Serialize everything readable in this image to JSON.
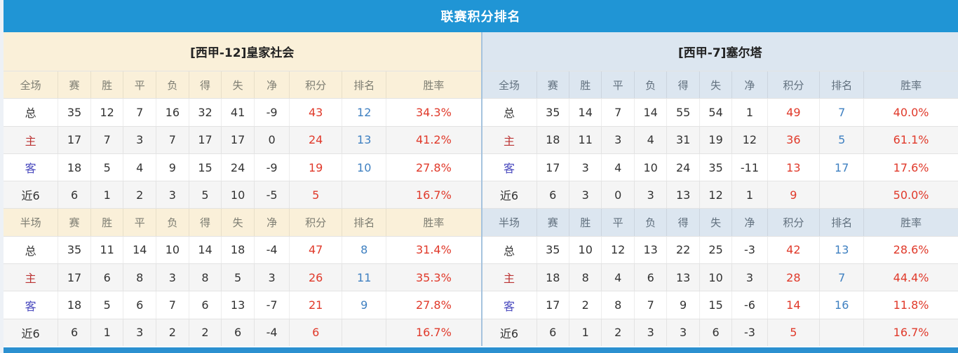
{
  "title": "联赛积分排名",
  "colors": {
    "top_bar": "#2095d5",
    "left_header_bg": "#faf0d9",
    "right_header_bg": "#dce6f0",
    "points_and_rate_red": "#e0392a",
    "rank_blue": "#3f80c1",
    "home_label_red": "#bb3333",
    "away_label_blue": "#4747bd",
    "divider_blue": "#a6c3de",
    "bottom_bar": "#2b90d0"
  },
  "columns": [
    "赛",
    "胜",
    "平",
    "负",
    "得",
    "失",
    "净",
    "积分",
    "排名",
    "胜率"
  ],
  "tables": [
    {
      "team": "[西甲-12]皇家社会",
      "theme": "theme-beige",
      "sections": [
        {
          "label": "全场",
          "rows": [
            {
              "label": "总",
              "type": "total",
              "cells": [
                "35",
                "12",
                "7",
                "16",
                "32",
                "41",
                "-9",
                "43",
                "12",
                "34.3%"
              ]
            },
            {
              "label": "主",
              "type": "home",
              "cells": [
                "17",
                "7",
                "3",
                "7",
                "17",
                "17",
                "0",
                "24",
                "13",
                "41.2%"
              ]
            },
            {
              "label": "客",
              "type": "away",
              "cells": [
                "18",
                "5",
                "4",
                "9",
                "15",
                "24",
                "-9",
                "19",
                "10",
                "27.8%"
              ]
            },
            {
              "label": "近6",
              "type": "last6",
              "cells": [
                "6",
                "1",
                "2",
                "3",
                "5",
                "10",
                "-5",
                "5",
                "",
                "16.7%"
              ]
            }
          ]
        },
        {
          "label": "半场",
          "rows": [
            {
              "label": "总",
              "type": "total",
              "cells": [
                "35",
                "11",
                "14",
                "10",
                "14",
                "18",
                "-4",
                "47",
                "8",
                "31.4%"
              ]
            },
            {
              "label": "主",
              "type": "home",
              "cells": [
                "17",
                "6",
                "8",
                "3",
                "8",
                "5",
                "3",
                "26",
                "11",
                "35.3%"
              ]
            },
            {
              "label": "客",
              "type": "away",
              "cells": [
                "18",
                "5",
                "6",
                "7",
                "6",
                "13",
                "-7",
                "21",
                "9",
                "27.8%"
              ]
            },
            {
              "label": "近6",
              "type": "last6",
              "cells": [
                "6",
                "1",
                "3",
                "2",
                "2",
                "6",
                "-4",
                "6",
                "",
                "16.7%"
              ]
            }
          ]
        }
      ]
    },
    {
      "team": "[西甲-7]塞尔塔",
      "theme": "theme-blue",
      "sections": [
        {
          "label": "全场",
          "rows": [
            {
              "label": "总",
              "type": "total",
              "cells": [
                "35",
                "14",
                "7",
                "14",
                "55",
                "54",
                "1",
                "49",
                "7",
                "40.0%"
              ]
            },
            {
              "label": "主",
              "type": "home",
              "cells": [
                "18",
                "11",
                "3",
                "4",
                "31",
                "19",
                "12",
                "36",
                "5",
                "61.1%"
              ]
            },
            {
              "label": "客",
              "type": "away",
              "cells": [
                "17",
                "3",
                "4",
                "10",
                "24",
                "35",
                "-11",
                "13",
                "17",
                "17.6%"
              ]
            },
            {
              "label": "近6",
              "type": "last6",
              "cells": [
                "6",
                "3",
                "0",
                "3",
                "13",
                "12",
                "1",
                "9",
                "",
                "50.0%"
              ]
            }
          ]
        },
        {
          "label": "半场",
          "rows": [
            {
              "label": "总",
              "type": "total",
              "cells": [
                "35",
                "10",
                "12",
                "13",
                "22",
                "25",
                "-3",
                "42",
                "13",
                "28.6%"
              ]
            },
            {
              "label": "主",
              "type": "home",
              "cells": [
                "18",
                "8",
                "4",
                "6",
                "13",
                "10",
                "3",
                "28",
                "7",
                "44.4%"
              ]
            },
            {
              "label": "客",
              "type": "away",
              "cells": [
                "17",
                "2",
                "8",
                "7",
                "9",
                "15",
                "-6",
                "14",
                "16",
                "11.8%"
              ]
            },
            {
              "label": "近6",
              "type": "last6",
              "cells": [
                "6",
                "1",
                "2",
                "3",
                "3",
                "6",
                "-3",
                "5",
                "",
                "16.7%"
              ]
            }
          ]
        }
      ]
    }
  ]
}
